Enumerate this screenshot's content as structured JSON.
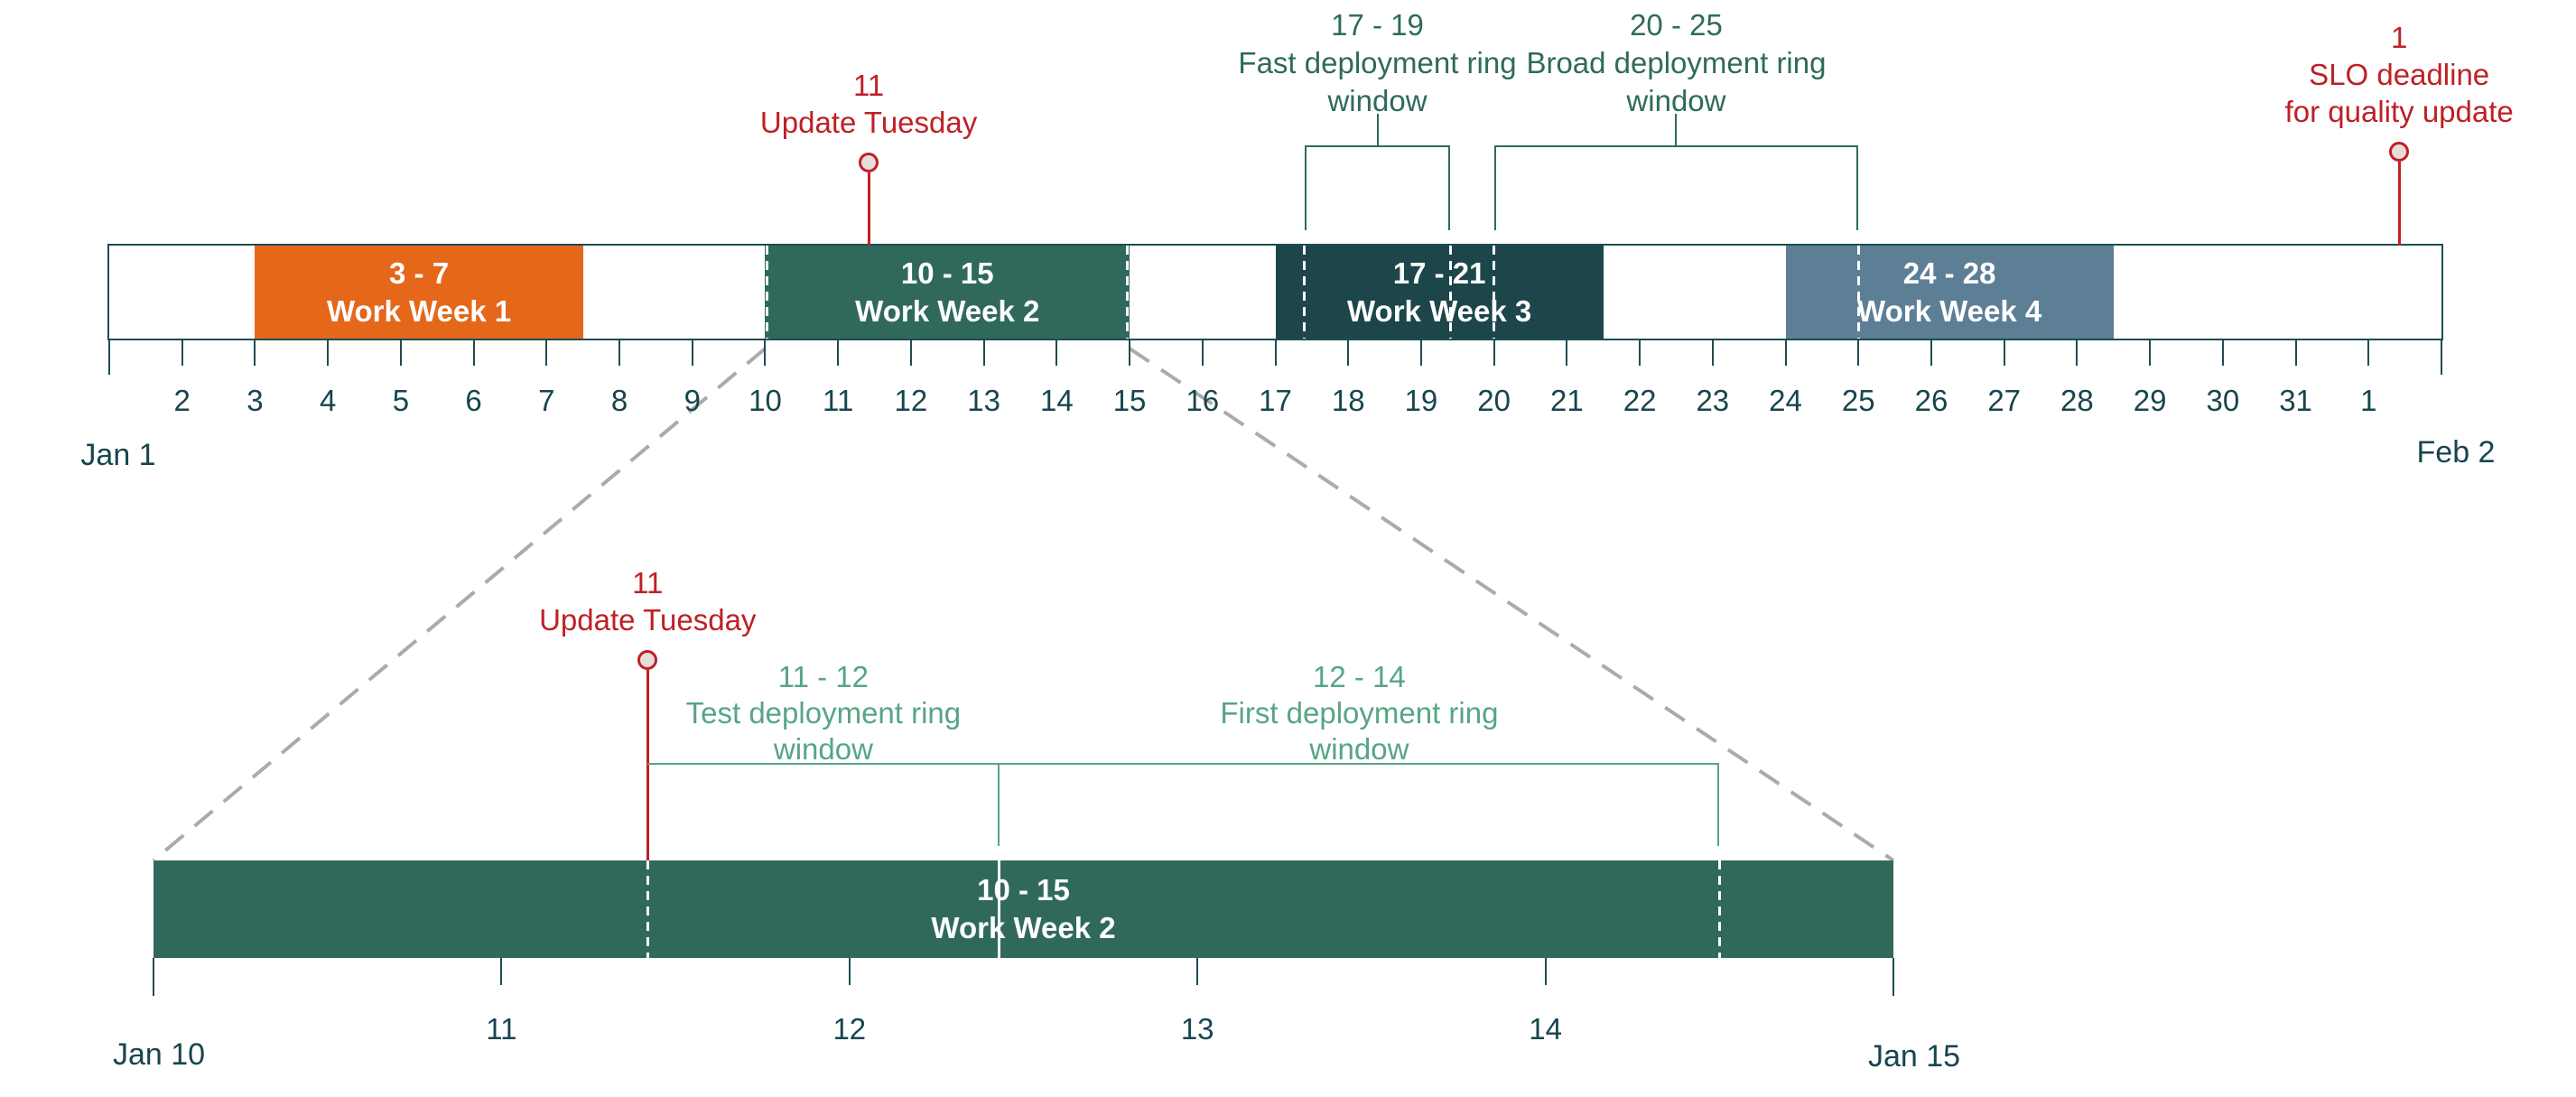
{
  "colors": {
    "axis": "#1D4D52",
    "tick_text": "#17454F",
    "orange": "#E5671A",
    "ww2_green": "#30695C",
    "ww3_teal": "#1C464A",
    "ww4_slate": "#5C7F95",
    "annotation_green_dark": "#2E6B5C",
    "annotation_green_light": "#57A584",
    "red": "#BE2026",
    "pin_fill": "#EBDCDC",
    "connector_gray": "#ABABAB",
    "white": "#FFFFFF"
  },
  "top_timeline": {
    "start_label": "Jan 1",
    "end_label": "Feb 2",
    "axis_start_day": 1,
    "axis_end_day": 33,
    "ticks": [
      {
        "day": 2,
        "label": "2"
      },
      {
        "day": 3,
        "label": "3"
      },
      {
        "day": 4,
        "label": "4"
      },
      {
        "day": 5,
        "label": "5"
      },
      {
        "day": 6,
        "label": "6"
      },
      {
        "day": 7,
        "label": "7"
      },
      {
        "day": 8,
        "label": "8"
      },
      {
        "day": 9,
        "label": "9"
      },
      {
        "day": 10,
        "label": "10"
      },
      {
        "day": 11,
        "label": "11"
      },
      {
        "day": 12,
        "label": "12"
      },
      {
        "day": 13,
        "label": "13"
      },
      {
        "day": 14,
        "label": "14"
      },
      {
        "day": 15,
        "label": "15"
      },
      {
        "day": 16,
        "label": "16"
      },
      {
        "day": 17,
        "label": "17"
      },
      {
        "day": 18,
        "label": "18"
      },
      {
        "day": 19,
        "label": "19"
      },
      {
        "day": 20,
        "label": "20"
      },
      {
        "day": 21,
        "label": "21"
      },
      {
        "day": 22,
        "label": "22"
      },
      {
        "day": 23,
        "label": "23"
      },
      {
        "day": 24,
        "label": "24"
      },
      {
        "day": 25,
        "label": "25"
      },
      {
        "day": 26,
        "label": "26"
      },
      {
        "day": 27,
        "label": "27"
      },
      {
        "day": 28,
        "label": "28"
      },
      {
        "day": 29,
        "label": "29"
      },
      {
        "day": 30,
        "label": "30"
      },
      {
        "day": 31,
        "label": "31"
      },
      {
        "day": 32,
        "label": "1"
      }
    ],
    "bars": [
      {
        "name": "work-week-1",
        "range_label": "3 - 7",
        "name_label": "Work Week 1",
        "start": 3,
        "end": 7.5,
        "color_key": "orange",
        "dashed_days": []
      },
      {
        "name": "work-week-2",
        "range_label": "10 - 15",
        "name_label": "Work Week 2",
        "start": 10,
        "end": 15,
        "color_key": "ww2_green",
        "dashed_days": [
          10,
          15
        ]
      },
      {
        "name": "work-week-3",
        "range_label": "17 - 21",
        "name_label": "Work Week 3",
        "start": 17,
        "end": 21.5,
        "color_key": "ww3_teal",
        "dashed_days": [
          17.4,
          19.4,
          20
        ]
      },
      {
        "name": "work-week-4",
        "range_label": "24 - 28",
        "name_label": "Work Week 4",
        "start": 24,
        "end": 28.5,
        "color_key": "ww4_slate",
        "dashed_days": [
          25
        ]
      }
    ],
    "pins": [
      {
        "name": "update-tuesday",
        "day": 11.42,
        "lines": [
          "11",
          "Update Tuesday"
        ]
      },
      {
        "name": "slo-deadline",
        "day": 32.42,
        "lines": [
          "1",
          "SLO deadline",
          "for quality update"
        ]
      }
    ],
    "brackets": [
      {
        "name": "fast-ring",
        "start": 17.4,
        "end": 19.4,
        "lines": [
          "17 - 19",
          "Fast deployment ring",
          "window"
        ]
      },
      {
        "name": "broad-ring",
        "start": 20,
        "end": 25,
        "lines": [
          "20 - 25",
          "Broad deployment ring",
          "window"
        ]
      }
    ]
  },
  "detail_timeline": {
    "start_label": "Jan 10",
    "end_label": "Jan 15",
    "axis_start_day": 10,
    "axis_end_day": 15,
    "ticks": [
      {
        "day": 11,
        "label": "11"
      },
      {
        "day": 12,
        "label": "12"
      },
      {
        "day": 13,
        "label": "13"
      },
      {
        "day": 14,
        "label": "14"
      }
    ],
    "bar": {
      "name": "work-week-2-detail",
      "range_label": "10 - 15",
      "name_label": "Work Week 2",
      "start": 10,
      "end": 15,
      "color_key": "ww2_green"
    },
    "bar_lines": [
      {
        "day": 11.42,
        "style": "dashed"
      },
      {
        "day": 12.43,
        "style": "solid"
      },
      {
        "day": 14.5,
        "style": "dashed"
      }
    ],
    "pin": {
      "name": "update-tuesday-detail",
      "day": 11.42,
      "lines": [
        "11",
        "Update Tuesday"
      ]
    },
    "windows": [
      {
        "name": "test-ring",
        "start": 11.42,
        "end": 12.43,
        "lines": [
          "11 - 12",
          "Test deployment ring",
          "window"
        ]
      },
      {
        "name": "first-ring",
        "start": 12.43,
        "end": 14.5,
        "lines": [
          "12 - 14",
          "First deployment ring",
          "window"
        ]
      }
    ]
  }
}
